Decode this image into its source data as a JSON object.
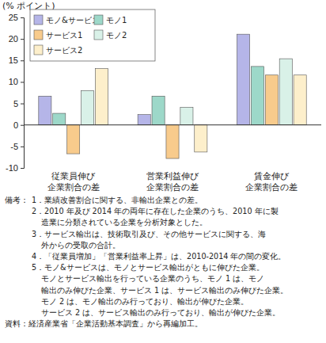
{
  "chart_data": {
    "type": "bar",
    "y_label": "(% ポイント)",
    "categories": [
      "従業員伸び\n企業割合の差",
      "営業利益伸び\n企業割合の差",
      "賃金伸び\n企業割合の差"
    ],
    "series": [
      {
        "name": "モノ&サービス",
        "color": "#b5b5e8",
        "values": [
          6.7,
          2.4,
          21.1
        ]
      },
      {
        "name": "モノ1",
        "color": "#9dd8c9",
        "values": [
          2.7,
          6.7,
          13.6
        ]
      },
      {
        "name": "サービス1",
        "color": "#f8cb8c",
        "values": [
          -6.7,
          -7.8,
          11.6
        ]
      },
      {
        "name": "モノ2",
        "color": "#d9f1e8",
        "values": [
          8.0,
          4.1,
          15.4
        ]
      },
      {
        "name": "サービス2",
        "color": "#fdefcb",
        "values": [
          13.1,
          -6.3,
          11.6
        ]
      }
    ],
    "ylim": [
      -10,
      25
    ],
    "yticks": [
      -10,
      -5,
      0,
      5,
      10,
      15,
      20,
      25
    ],
    "grid": false,
    "legend": "upper left",
    "notes_label": "備考：",
    "notes": [
      [
        "1．業績改善割合に関する、非輸出企業との差。"
      ],
      [
        "2．2010 年及び 2014 年の両年に存在した企業のうち、2010 年に製",
        "造業に分類されている企業を分析対象とした。"
      ],
      [
        "3．サービス輸出は、技術取引及び、その他サービスに関する、海",
        "外からの受取の合計。"
      ],
      [
        "4．「従業員増加」「営業利益率上昇」は、2010-2014 年の間の変化。"
      ],
      [
        "5．モノ&サービスは、モノとサービス輸出がともに伸びた企業。",
        "モノとサービス輸出を行っている企業のうち、モノ 1 は、モノ",
        "輸出のみ伸びた企業、サービス 1 は、サービス輸出のみ伸びた企業。",
        "モノ 2 は、モノ輸出のみ行っており、輸出が伸びた企業。",
        "サービス 2 は、サービス輸出のみ行っており、輸出が伸びた企業。"
      ]
    ],
    "source": "資料：経済産業省「企業活動基本調査」から再編加工。"
  }
}
